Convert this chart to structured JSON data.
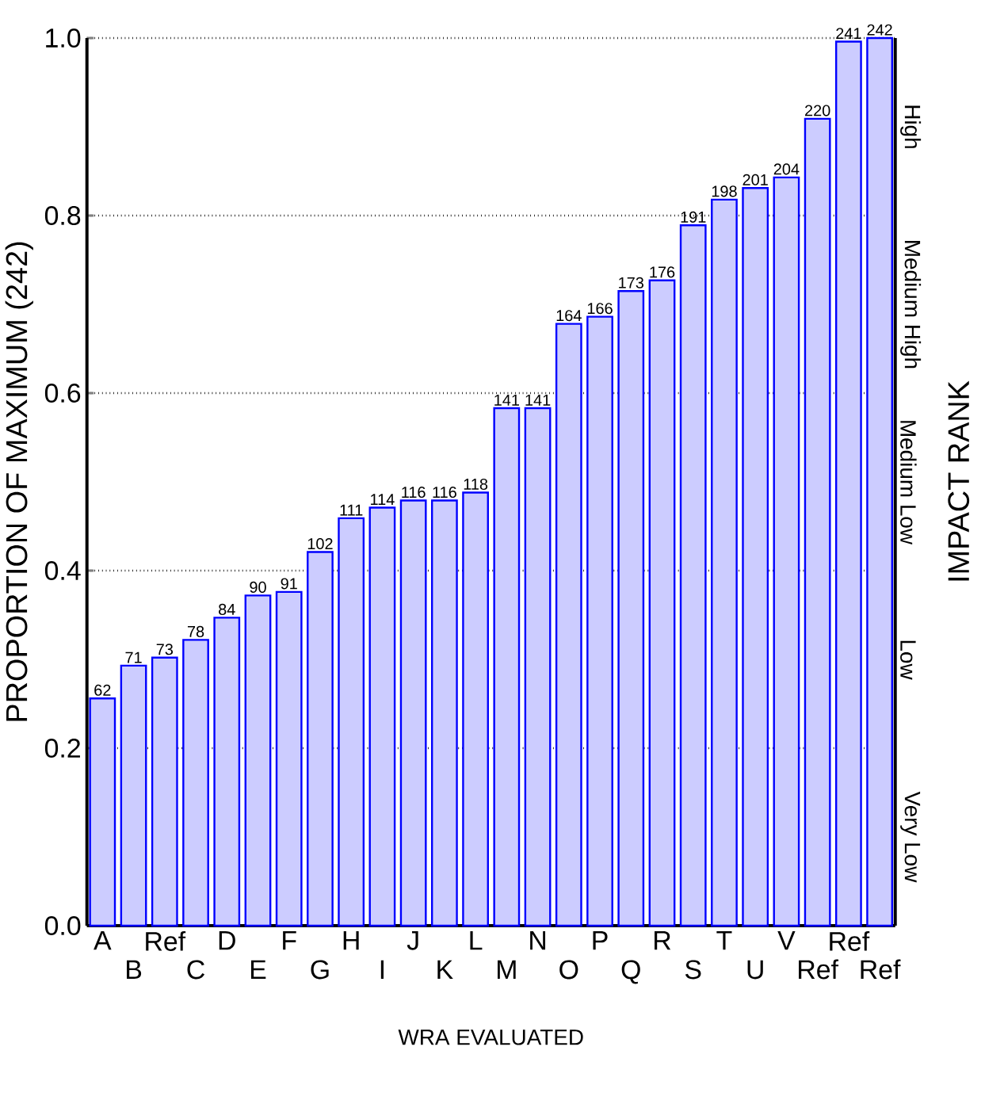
{
  "chart_data": {
    "type": "bar",
    "xlabel": "WRA EVALUATED",
    "ylabel": "PROPORTION OF MAXIMUM (242)",
    "y2label": "IMPACT RANK",
    "categories": [
      "A",
      "B",
      "Ref",
      "C",
      "D",
      "E",
      "F",
      "G",
      "H",
      "I",
      "J",
      "K",
      "L",
      "M",
      "N",
      "O",
      "P",
      "Q",
      "R",
      "S",
      "T",
      "U",
      "V",
      "Ref",
      "Ref",
      "Ref"
    ],
    "values": [
      0.256,
      0.293,
      0.302,
      0.322,
      0.347,
      0.372,
      0.376,
      0.421,
      0.459,
      0.471,
      0.479,
      0.479,
      0.488,
      0.583,
      0.583,
      0.678,
      0.686,
      0.715,
      0.727,
      0.789,
      0.818,
      0.831,
      0.843,
      0.909,
      0.996,
      1.0
    ],
    "annotations": [
      {
        "text": "62",
        "x": "A",
        "y": 0.256
      },
      {
        "text": "71",
        "x": "B",
        "y": 0.293
      },
      {
        "text": "73",
        "x": "Ref",
        "y": 0.302
      },
      {
        "text": "78",
        "x": "C",
        "y": 0.322
      },
      {
        "text": "84",
        "x": "D",
        "y": 0.347
      },
      {
        "text": "90",
        "x": "E",
        "y": 0.372
      },
      {
        "text": "91",
        "x": "F",
        "y": 0.376
      },
      {
        "text": "102",
        "x": "G",
        "y": 0.421
      },
      {
        "text": "111",
        "x": "H",
        "y": 0.459
      },
      {
        "text": "114",
        "x": "I",
        "y": 0.471
      },
      {
        "text": "116",
        "x": "J",
        "y": 0.479
      },
      {
        "text": "116",
        "x": "K",
        "y": 0.479
      },
      {
        "text": "118",
        "x": "L",
        "y": 0.488
      },
      {
        "text": "141",
        "x": "M",
        "y": 0.583
      },
      {
        "text": "141",
        "x": "N",
        "y": 0.583
      },
      {
        "text": "164",
        "x": "O",
        "y": 0.678
      },
      {
        "text": "166",
        "x": "P",
        "y": 0.686
      },
      {
        "text": "173",
        "x": "Q",
        "y": 0.715
      },
      {
        "text": "176",
        "x": "R",
        "y": 0.727
      },
      {
        "text": "191",
        "x": "S",
        "y": 0.789
      },
      {
        "text": "198",
        "x": "T",
        "y": 0.818
      },
      {
        "text": "201",
        "x": "U",
        "y": 0.831
      },
      {
        "text": "204",
        "x": "V",
        "y": 0.843
      },
      "220",
      "241",
      "242",
      "Very Low",
      "Low",
      "Medium Low",
      "Medium High",
      "High"
    ],
    "color": "#ccccff",
    "ylim": [
      0,
      1
    ],
    "yticks": [
      {
        "value": 0,
        "label": "0.0"
      },
      {
        "value": 0.2,
        "label": "0.2"
      },
      {
        "value": 0.4,
        "label": "0.4"
      },
      {
        "value": 0.6,
        "label": "0.6"
      },
      {
        "value": 0.8,
        "label": "0.8"
      },
      {
        "value": 1,
        "label": "1.0"
      }
    ],
    "grid": "y"
  }
}
